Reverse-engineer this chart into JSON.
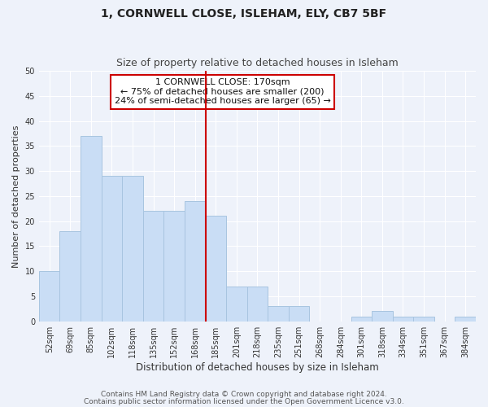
{
  "title": "1, CORNWELL CLOSE, ISLEHAM, ELY, CB7 5BF",
  "subtitle": "Size of property relative to detached houses in Isleham",
  "xlabel": "Distribution of detached houses by size in Isleham",
  "ylabel": "Number of detached properties",
  "bar_labels": [
    "52sqm",
    "69sqm",
    "85sqm",
    "102sqm",
    "118sqm",
    "135sqm",
    "152sqm",
    "168sqm",
    "185sqm",
    "201sqm",
    "218sqm",
    "235sqm",
    "251sqm",
    "268sqm",
    "284sqm",
    "301sqm",
    "318sqm",
    "334sqm",
    "351sqm",
    "367sqm",
    "384sqm"
  ],
  "bar_values": [
    10,
    18,
    37,
    29,
    29,
    22,
    22,
    24,
    21,
    7,
    7,
    3,
    3,
    0,
    0,
    1,
    2,
    1,
    1,
    0,
    1
  ],
  "bar_color": "#c9ddf5",
  "bar_edge_color": "#a8c4e0",
  "vline_x": 7.5,
  "vline_color": "#cc0000",
  "ylim": [
    0,
    50
  ],
  "yticks": [
    0,
    5,
    10,
    15,
    20,
    25,
    30,
    35,
    40,
    45,
    50
  ],
  "annotation_box_text": "1 CORNWELL CLOSE: 170sqm\n← 75% of detached houses are smaller (200)\n24% of semi-detached houses are larger (65) →",
  "footer_line1": "Contains HM Land Registry data © Crown copyright and database right 2024.",
  "footer_line2": "Contains public sector information licensed under the Open Government Licence v3.0.",
  "bg_color": "#eef2fa",
  "plot_bg_color": "#eef2fa",
  "grid_color": "#ffffff",
  "title_fontsize": 10,
  "subtitle_fontsize": 9,
  "xlabel_fontsize": 8.5,
  "ylabel_fontsize": 8,
  "tick_fontsize": 7,
  "footer_fontsize": 6.5,
  "annotation_fontsize": 8
}
